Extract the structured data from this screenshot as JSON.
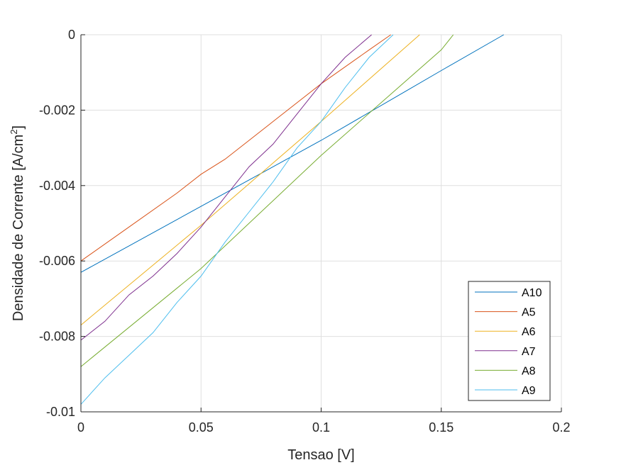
{
  "chart_data": {
    "type": "line",
    "xlabel": "Tensao [V]",
    "ylabel_main": "Densidade de Corrente [A/cm",
    "ylabel_sup": "2",
    "ylabel_end": "]",
    "xlim": [
      0,
      0.2
    ],
    "ylim": [
      -0.01,
      0
    ],
    "xticks": [
      0,
      0.05,
      0.1,
      0.15,
      0.2
    ],
    "xtick_labels": [
      "0",
      "0.05",
      "0.1",
      "0.15",
      "0.2"
    ],
    "yticks": [
      0,
      -0.002,
      -0.004,
      -0.006,
      -0.008,
      -0.01
    ],
    "ytick_labels": [
      "0",
      "-0.002",
      "-0.004",
      "-0.006",
      "-0.008",
      "-0.01"
    ],
    "grid": true,
    "legend_position": "bottom-right",
    "series": [
      {
        "name": "A10",
        "color": "#0072BD",
        "x": [
          0,
          0.05,
          0.1,
          0.15,
          0.176
        ],
        "y": [
          -0.0063,
          -0.00455,
          -0.0028,
          -0.00095,
          0
        ]
      },
      {
        "name": "A5",
        "color": "#D95319",
        "x": [
          0,
          0.02,
          0.04,
          0.05,
          0.06,
          0.07,
          0.08,
          0.1,
          0.12,
          0.129
        ],
        "y": [
          -0.006,
          -0.0051,
          -0.0042,
          -0.0037,
          -0.0033,
          -0.0028,
          -0.0023,
          -0.0013,
          -0.0004,
          0
        ]
      },
      {
        "name": "A6",
        "color": "#EDB120",
        "x": [
          0,
          0.05,
          0.1,
          0.141
        ],
        "y": [
          -0.0077,
          -0.00505,
          -0.0023,
          0
        ]
      },
      {
        "name": "A7",
        "color": "#7E2F8E",
        "x": [
          0,
          0.01,
          0.02,
          0.03,
          0.04,
          0.05,
          0.06,
          0.07,
          0.08,
          0.09,
          0.1,
          0.11,
          0.121
        ],
        "y": [
          -0.0081,
          -0.0076,
          -0.0069,
          -0.0064,
          -0.0058,
          -0.0051,
          -0.0043,
          -0.0035,
          -0.0029,
          -0.0021,
          -0.0013,
          -0.0006,
          0
        ]
      },
      {
        "name": "A8",
        "color": "#77AC30",
        "x": [
          0,
          0.05,
          0.1,
          0.15,
          0.155
        ],
        "y": [
          -0.0088,
          -0.0062,
          -0.0032,
          -0.0004,
          0
        ]
      },
      {
        "name": "A9",
        "color": "#4DBEEE",
        "x": [
          0,
          0.01,
          0.02,
          0.03,
          0.04,
          0.05,
          0.06,
          0.07,
          0.08,
          0.09,
          0.1,
          0.11,
          0.12,
          0.13
        ],
        "y": [
          -0.0098,
          -0.0091,
          -0.0085,
          -0.0079,
          -0.0071,
          -0.0064,
          -0.0055,
          -0.0047,
          -0.0039,
          -0.003,
          -0.0023,
          -0.0014,
          -0.0006,
          0
        ]
      }
    ]
  }
}
